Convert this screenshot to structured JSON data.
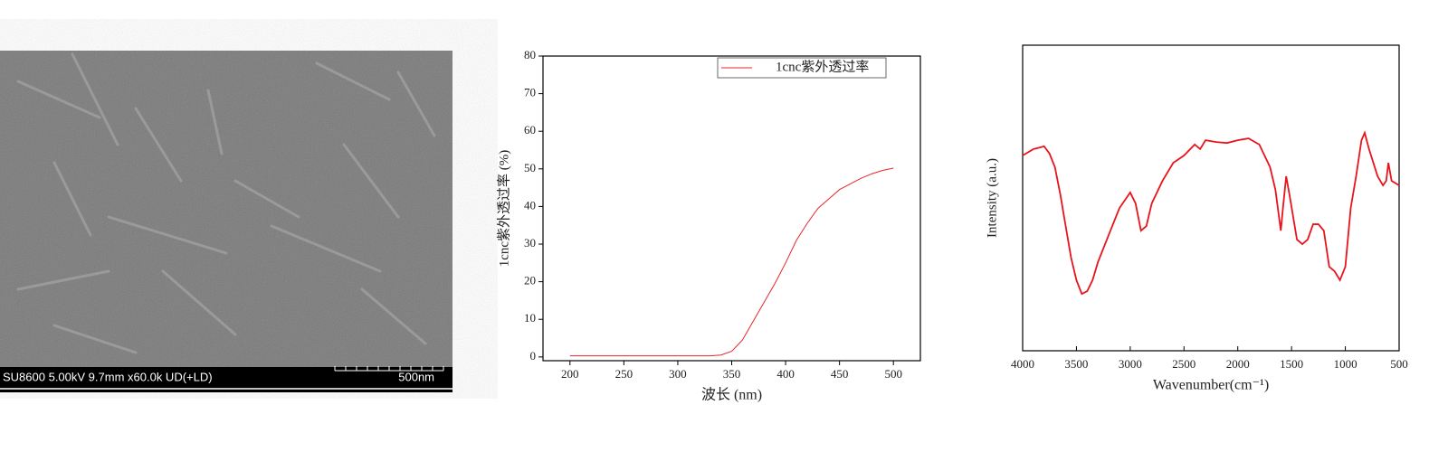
{
  "sem_image": {
    "info": "SU8600 5.00kV 9.7mm x60.0k UD(+LD)",
    "scale": "500nm"
  },
  "chart_data": [
    {
      "type": "line",
      "x_label": "波长 (nm)",
      "y_label": "1cnc紫外透过率 (%)",
      "x": [
        200,
        210,
        220,
        230,
        240,
        250,
        260,
        270,
        280,
        290,
        300,
        310,
        320,
        330,
        340,
        350,
        360,
        370,
        380,
        390,
        400,
        410,
        420,
        430,
        440,
        450,
        460,
        470,
        480,
        490,
        500
      ],
      "series": [
        {
          "name": "1cnc紫外透过率",
          "color": "#e8262a",
          "values": [
            0.3,
            0.3,
            0.3,
            0.3,
            0.3,
            0.3,
            0.3,
            0.3,
            0.3,
            0.3,
            0.3,
            0.3,
            0.3,
            0.3,
            0.5,
            1.5,
            4.5,
            9.5,
            14.5,
            19.5,
            25,
            31,
            35.5,
            39.5,
            42,
            44.5,
            46,
            47.5,
            48.7,
            49.6,
            50.2
          ]
        }
      ],
      "xlim": [
        175,
        525
      ],
      "ylim": [
        -1,
        80
      ],
      "xticks": [
        200,
        250,
        300,
        350,
        400,
        450,
        500
      ],
      "yticks": [
        0,
        10,
        20,
        30,
        40,
        50,
        60,
        70,
        80
      ],
      "legend": "top-right"
    },
    {
      "type": "line",
      "x_label": "Wavenumber(cm⁻¹)",
      "y_label": "Intensity (a.u.)",
      "x": [
        4000,
        3900,
        3800,
        3750,
        3700,
        3650,
        3600,
        3550,
        3500,
        3450,
        3400,
        3350,
        3300,
        3200,
        3100,
        3000,
        2950,
        2900,
        2850,
        2800,
        2700,
        2600,
        2500,
        2400,
        2350,
        2300,
        2200,
        2100,
        2000,
        1900,
        1800,
        1700,
        1650,
        1600,
        1580,
        1550,
        1520,
        1450,
        1400,
        1350,
        1300,
        1250,
        1200,
        1150,
        1100,
        1050,
        1000,
        950,
        900,
        850,
        820,
        780,
        700,
        650,
        620,
        600,
        570,
        500
      ],
      "series": [
        {
          "color": "#e8141c",
          "values": [
            63.9,
            66.0,
            66.9,
            64.5,
            60.1,
            51.2,
            40.8,
            30.5,
            23.1,
            18.6,
            19.5,
            23.1,
            29.0,
            37.9,
            46.7,
            51.8,
            48.2,
            39.3,
            40.8,
            48.2,
            55.6,
            61.5,
            63.9,
            67.5,
            66.0,
            68.9,
            68.3,
            68.0,
            68.9,
            69.5,
            67.5,
            60.1,
            52.7,
            39.3,
            46.7,
            57.1,
            51.2,
            36.4,
            34.9,
            36.4,
            41.4,
            41.4,
            39.3,
            27.5,
            26.0,
            23.1,
            27.5,
            46.7,
            57.1,
            68.9,
            71.3,
            66.0,
            57.1,
            54.1,
            55.6,
            61.5,
            55.6,
            54.1
          ]
        }
      ],
      "xlim": [
        4000,
        500
      ],
      "ylim": [
        0,
        100
      ],
      "xticks": [
        4000,
        3500,
        3000,
        2500,
        2000,
        1500,
        1000,
        500
      ]
    }
  ]
}
